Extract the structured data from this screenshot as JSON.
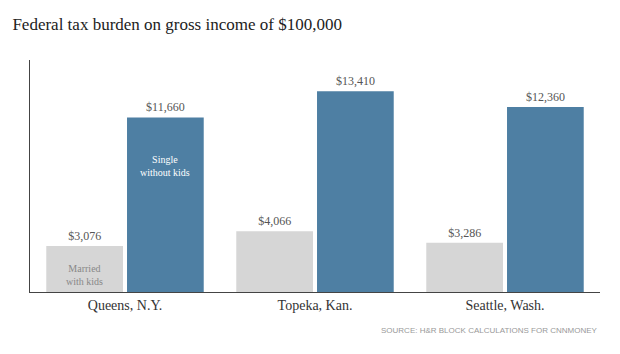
{
  "chart_data": {
    "type": "bar",
    "title": "Federal tax burden on gross income of $100,000",
    "categories": [
      "Queens, N.Y.",
      "Topeka, Kan.",
      "Seattle, Wash."
    ],
    "series": [
      {
        "color": "#d6d6d6",
        "values": [
          3076,
          4066,
          3286
        ],
        "value_labels": [
          "$3,076",
          "$4,066",
          "$3,286"
        ]
      },
      {
        "color": "#4e7fa3",
        "values": [
          11660,
          13410,
          12360
        ],
        "value_labels": [
          "$11,660",
          "$13,410",
          "$12,360"
        ]
      }
    ],
    "ylim": [
      0,
      15500
    ],
    "grid": false,
    "data_labels": true,
    "tick_labels": "x",
    "annotations": [
      "Married\nwith kids",
      "Single\nwithout kids",
      "SOURCE: H&R BLOCK CALCULATIONS FOR CNNMONEY"
    ]
  }
}
